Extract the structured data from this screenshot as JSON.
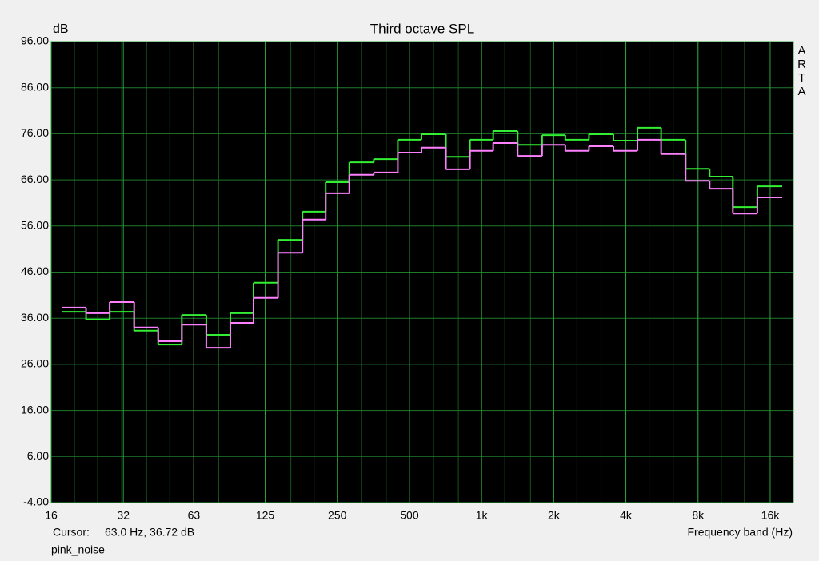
{
  "chart_data": {
    "type": "step",
    "title": "Third octave SPL",
    "y_label": "dB",
    "x_label": "Frequency band (Hz)",
    "brand": "ARTA",
    "cursor": {
      "label": "Cursor:",
      "text": "63.0 Hz, 36.72 dB",
      "x": 63,
      "color": "#e6e6a0"
    },
    "note": "pink_noise",
    "x_scale": "log",
    "grid": true,
    "background": "#000000",
    "grid_color": "#1f7a2a",
    "xlim": [
      16,
      20000
    ],
    "ylim": [
      -4,
      96
    ],
    "xticks": [
      16,
      32,
      63,
      125,
      250,
      500,
      {
        "value": 1000,
        "label": "1k"
      },
      {
        "value": 2000,
        "label": "2k"
      },
      {
        "value": 4000,
        "label": "4k"
      },
      {
        "value": 8000,
        "label": "8k"
      },
      {
        "value": 16000,
        "label": "16k"
      }
    ],
    "yticks": [
      {
        "value": -4,
        "label": "-4.00"
      },
      {
        "value": 6,
        "label": "6.00"
      },
      {
        "value": 16,
        "label": "16.00"
      },
      {
        "value": 26,
        "label": "26.00"
      },
      {
        "value": 36,
        "label": "36.00"
      },
      {
        "value": 46,
        "label": "46.00"
      },
      {
        "value": 56,
        "label": "56.00"
      },
      {
        "value": 66,
        "label": "66.00"
      },
      {
        "value": 76,
        "label": "76.00"
      },
      {
        "value": 86,
        "label": "86.00"
      },
      {
        "value": 96,
        "label": "96.00"
      }
    ],
    "x": [
      20,
      25,
      31.5,
      40,
      50,
      63,
      80,
      100,
      125,
      160,
      200,
      250,
      315,
      400,
      500,
      630,
      800,
      1000,
      1250,
      1600,
      2000,
      2500,
      3150,
      4000,
      5000,
      6300,
      8000,
      10000,
      12500,
      16000
    ],
    "series": [
      {
        "color": "#33ee33",
        "values": [
          37.4,
          35.7,
          37.4,
          33.3,
          30.3,
          36.7,
          32.4,
          37.1,
          43.7,
          53.0,
          59.1,
          65.5,
          69.8,
          70.5,
          74.7,
          75.9,
          71.0,
          74.7,
          76.6,
          73.6,
          75.7,
          74.7,
          75.9,
          74.5,
          77.3,
          74.7,
          68.4,
          66.7,
          60.1,
          64.6
        ]
      },
      {
        "color": "#ff80ff",
        "values": [
          38.3,
          37.1,
          39.5,
          34.0,
          31.0,
          34.6,
          29.6,
          35.0,
          40.4,
          50.2,
          57.4,
          63.1,
          67.1,
          67.6,
          71.9,
          73.0,
          68.3,
          72.3,
          74.0,
          71.2,
          73.6,
          72.3,
          73.3,
          72.3,
          74.7,
          71.6,
          65.8,
          64.1,
          58.7,
          62.2
        ]
      }
    ]
  }
}
